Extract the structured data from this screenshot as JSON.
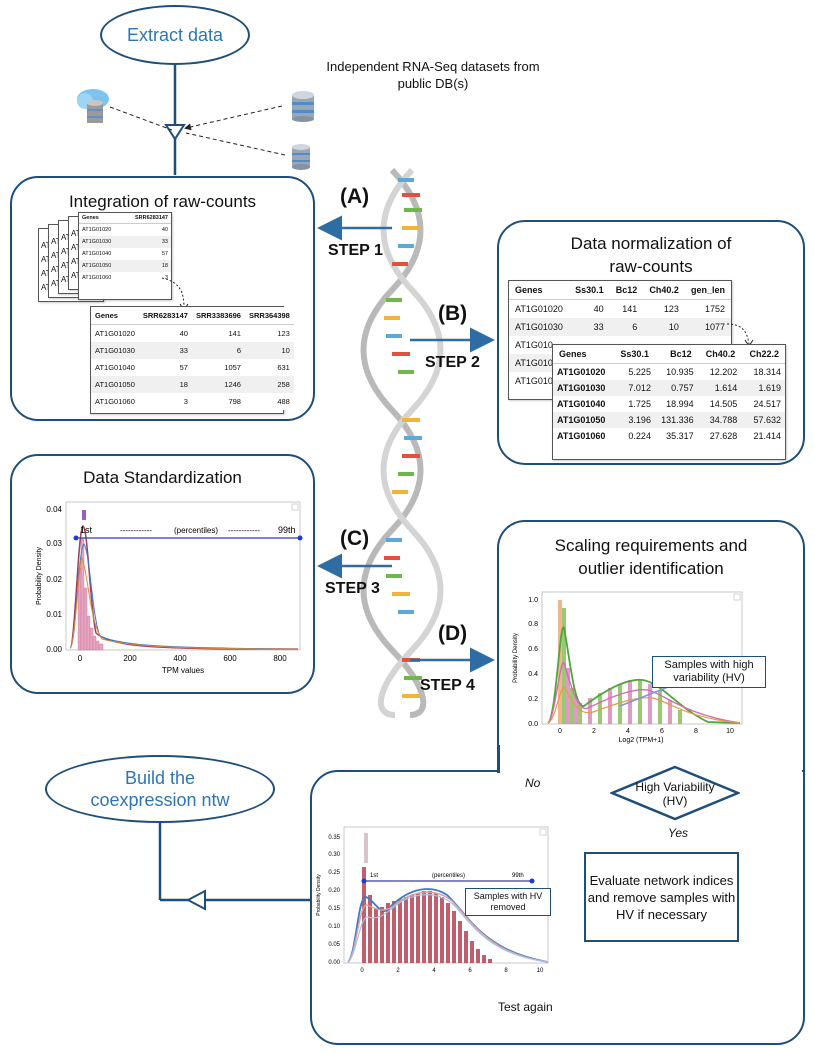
{
  "extract": {
    "label": "Extract data",
    "db_note": "Independent RNA-Seq datasets from public DB(s)"
  },
  "build": {
    "label": "Build the coexpression ntw"
  },
  "steps": [
    {
      "letter": "(A)",
      "step": "STEP 1"
    },
    {
      "letter": "(B)",
      "step": "STEP 2"
    },
    {
      "letter": "(C)",
      "step": "STEP 3"
    },
    {
      "letter": "(D)",
      "step": "STEP 4"
    }
  ],
  "panel_a": {
    "title": "Integration of raw-counts",
    "small_headers": [
      "Genes",
      "SRR6283147"
    ],
    "small_stub": "AT1G",
    "small_rows": [
      [
        "AT1G01020",
        "40"
      ],
      [
        "AT1G01030",
        "33"
      ],
      [
        "AT1G01040",
        "57"
      ],
      [
        "AT1G01050",
        "18"
      ],
      [
        "AT1G01060",
        "3"
      ]
    ],
    "headers": [
      "Genes",
      "SRR6283147",
      "SRR3383696",
      "SRR364398"
    ],
    "rows": [
      [
        "AT1G01020",
        "40",
        "141",
        "123"
      ],
      [
        "AT1G01030",
        "33",
        "6",
        "10"
      ],
      [
        "AT1G01040",
        "57",
        "1057",
        "631"
      ],
      [
        "AT1G01050",
        "18",
        "1246",
        "258"
      ],
      [
        "AT1G01060",
        "3",
        "798",
        "488"
      ]
    ]
  },
  "panel_b": {
    "title_line1": "Data normalization of",
    "title_line2": "raw-counts",
    "raw_headers": [
      "Genes",
      "Ss30.1",
      "Bc12",
      "Ch40.2",
      "gen_len"
    ],
    "raw_rows": [
      [
        "AT1G01020",
        "40",
        "141",
        "123",
        "1752"
      ],
      [
        "AT1G01030",
        "33",
        "6",
        "10",
        "1077"
      ],
      [
        "AT1G010",
        "",
        "",
        "",
        ""
      ],
      [
        "AT1G010",
        "",
        "",
        "",
        ""
      ],
      [
        "AT1G010",
        "",
        "",
        "",
        ""
      ]
    ],
    "norm_headers": [
      "Genes",
      "Ss30.1",
      "Bc12",
      "Ch40.2",
      "Ch22.2"
    ],
    "norm_rows": [
      [
        "AT1G01020",
        "5.225",
        "10.935",
        "12.202",
        "18.314"
      ],
      [
        "AT1G01030",
        "7.012",
        "0.757",
        "1.614",
        "1.619"
      ],
      [
        "AT1G01040",
        "1.725",
        "18.994",
        "14.505",
        "24.517"
      ],
      [
        "AT1G01050",
        "3.196",
        "131.336",
        "34.788",
        "57.632"
      ],
      [
        "AT1G01060",
        "0.224",
        "35.317",
        "27.628",
        "21.414"
      ]
    ]
  },
  "panel_c": {
    "title": "Data Standardization",
    "ylabel": "Probability Density",
    "xlabel": "TPM values",
    "yticks": [
      "0.04",
      "0.03",
      "0.02",
      "0.01",
      "0.00"
    ],
    "xticks": [
      "0",
      "200",
      "400",
      "600",
      "800"
    ],
    "pct_left": "1st",
    "pct_mid": "(percentiles)",
    "pct_right": "99th",
    "dashes": "------------"
  },
  "panel_d": {
    "title_line1": "Scaling requirements and",
    "title_line2": "outlier identification",
    "ylabel": "Probability Density",
    "xlabel": "Log2 (TPM+1)",
    "yticks": [
      "1.0",
      "0.8",
      "0.6",
      "0.4",
      "0.2",
      "0.0"
    ],
    "xticks": [
      "0",
      "2",
      "4",
      "6",
      "8",
      "10"
    ],
    "hv_box": "Samples with high variability (HV)",
    "decision": "High Variability (HV)",
    "no": "No",
    "yes": "Yes",
    "evaluate": "Evaluate network indices and remove samples with HV if necessary",
    "test_again": "Test again"
  },
  "panel_e": {
    "ylabel": "Probability Density",
    "yticks": [
      "0.35",
      "0.30",
      "0.25",
      "0.20",
      "0.15",
      "0.10",
      "0.05",
      "0.00"
    ],
    "xticks": [
      "0",
      "2",
      "4",
      "6",
      "8",
      "10"
    ],
    "pct_left": "1st",
    "pct_mid": "(percentiles)",
    "pct_right": "99th",
    "removed": "Samples with HV removed"
  },
  "colors": {
    "border": "#1f4e79",
    "accent": "#2e75b6",
    "arrow": "#2e6da4"
  }
}
